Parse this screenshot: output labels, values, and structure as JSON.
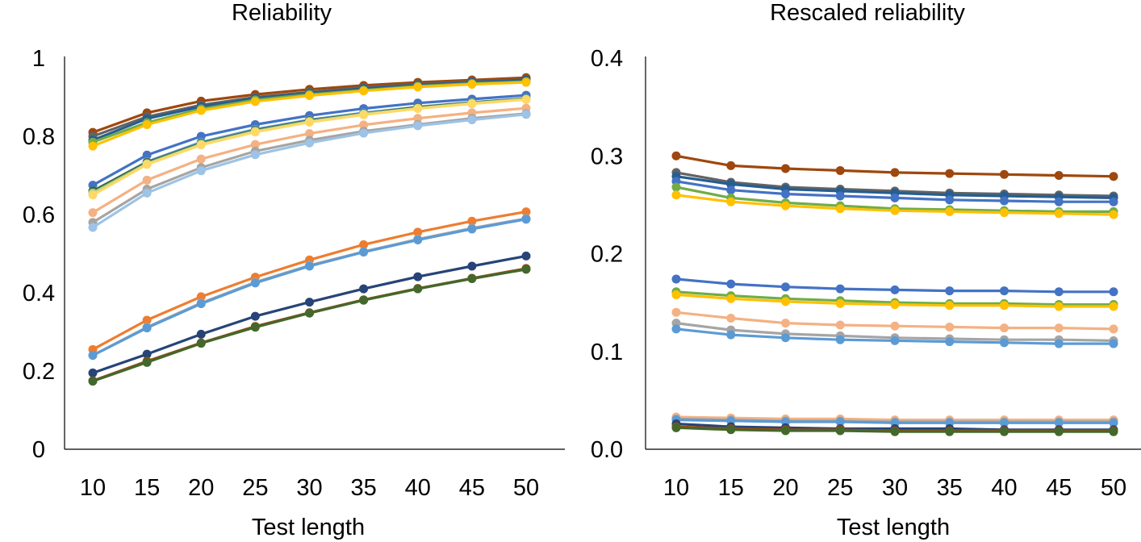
{
  "chart_data": [
    {
      "type": "line",
      "title": "Reliability",
      "xlabel": "Test length",
      "ylabel": "",
      "x": [
        10,
        15,
        20,
        25,
        30,
        35,
        40,
        45,
        50
      ],
      "ylim": [
        0,
        1
      ],
      "yticks": [
        "0",
        "0.2",
        "0.4",
        "0.6",
        "0.8",
        "1"
      ],
      "grid": false,
      "series": [
        {
          "color": "#9E480E",
          "values": [
            0.81,
            0.86,
            0.89,
            0.907,
            0.92,
            0.93,
            0.938,
            0.944,
            0.95
          ]
        },
        {
          "color": "#636363",
          "values": [
            0.8,
            0.85,
            0.88,
            0.9,
            0.913,
            0.925,
            0.933,
            0.94,
            0.945
          ]
        },
        {
          "color": "#255E91",
          "values": [
            0.79,
            0.845,
            0.876,
            0.897,
            0.91,
            0.922,
            0.931,
            0.938,
            0.944
          ]
        },
        {
          "color": "#70AD47",
          "values": [
            0.785,
            0.835,
            0.87,
            0.893,
            0.907,
            0.918,
            0.928,
            0.935,
            0.94
          ]
        },
        {
          "color": "#FFC000",
          "values": [
            0.775,
            0.83,
            0.866,
            0.889,
            0.904,
            0.916,
            0.926,
            0.933,
            0.938
          ]
        },
        {
          "color": "#4472C4",
          "values": [
            0.675,
            0.752,
            0.8,
            0.83,
            0.853,
            0.871,
            0.885,
            0.895,
            0.905
          ]
        },
        {
          "color": "#5B9BD5",
          "values": [
            0.66,
            0.735,
            0.785,
            0.818,
            0.842,
            0.86,
            0.875,
            0.887,
            0.897
          ]
        },
        {
          "color": "#43682B",
          "values": [
            0.66,
            0.733,
            0.782,
            0.815,
            0.84,
            0.858,
            0.874,
            0.886,
            0.896
          ]
        },
        {
          "color": "#A9D18E",
          "values": [
            0.655,
            0.73,
            0.78,
            0.813,
            0.838,
            0.857,
            0.872,
            0.885,
            0.895
          ]
        },
        {
          "color": "#FFD966",
          "values": [
            0.65,
            0.728,
            0.778,
            0.811,
            0.836,
            0.855,
            0.871,
            0.883,
            0.894
          ]
        },
        {
          "color": "#F4B183",
          "values": [
            0.605,
            0.688,
            0.742,
            0.779,
            0.807,
            0.829,
            0.846,
            0.86,
            0.872
          ]
        },
        {
          "color": "#A5A5A5",
          "values": [
            0.58,
            0.665,
            0.72,
            0.762,
            0.79,
            0.813,
            0.83,
            0.846,
            0.858
          ]
        },
        {
          "color": "#9DC3E6",
          "values": [
            0.567,
            0.655,
            0.712,
            0.753,
            0.783,
            0.808,
            0.827,
            0.842,
            0.856
          ]
        },
        {
          "color": "#ED7D31",
          "values": [
            0.255,
            0.33,
            0.39,
            0.44,
            0.484,
            0.523,
            0.555,
            0.583,
            0.607
          ]
        },
        {
          "color": "#A5A5A5",
          "values": [
            0.24,
            0.312,
            0.374,
            0.427,
            0.47,
            0.505,
            0.537,
            0.565,
            0.59
          ]
        },
        {
          "color": "#5B9BD5",
          "values": [
            0.24,
            0.31,
            0.372,
            0.425,
            0.468,
            0.504,
            0.535,
            0.563,
            0.588
          ]
        },
        {
          "color": "#264478",
          "values": [
            0.195,
            0.243,
            0.294,
            0.34,
            0.376,
            0.41,
            0.441,
            0.468,
            0.494
          ]
        },
        {
          "color": "#9E480E",
          "values": [
            0.175,
            0.225,
            0.272,
            0.314,
            0.349,
            0.382,
            0.411,
            0.437,
            0.462
          ]
        },
        {
          "color": "#43682B",
          "values": [
            0.174,
            0.222,
            0.271,
            0.312,
            0.348,
            0.381,
            0.41,
            0.436,
            0.46
          ]
        }
      ]
    },
    {
      "type": "line",
      "title": "Rescaled reliability",
      "xlabel": "Test length",
      "ylabel": "",
      "x": [
        10,
        15,
        20,
        25,
        30,
        35,
        40,
        45,
        50
      ],
      "ylim": [
        0,
        0.4
      ],
      "yticks": [
        "0.0",
        "0.1",
        "0.2",
        "0.3",
        "0.4"
      ],
      "grid": false,
      "series": [
        {
          "color": "#9E480E",
          "values": [
            0.3,
            0.29,
            0.287,
            0.285,
            0.283,
            0.282,
            0.281,
            0.28,
            0.279
          ]
        },
        {
          "color": "#636363",
          "values": [
            0.283,
            0.273,
            0.268,
            0.266,
            0.264,
            0.262,
            0.261,
            0.26,
            0.259
          ]
        },
        {
          "color": "#255E91",
          "values": [
            0.279,
            0.271,
            0.266,
            0.264,
            0.262,
            0.26,
            0.259,
            0.258,
            0.257
          ]
        },
        {
          "color": "#4472C4",
          "values": [
            0.274,
            0.265,
            0.261,
            0.259,
            0.257,
            0.255,
            0.254,
            0.253,
            0.253
          ]
        },
        {
          "color": "#70AD47",
          "values": [
            0.268,
            0.257,
            0.252,
            0.249,
            0.246,
            0.245,
            0.244,
            0.243,
            0.243
          ]
        },
        {
          "color": "#FFC000",
          "values": [
            0.26,
            0.253,
            0.249,
            0.246,
            0.244,
            0.243,
            0.242,
            0.241,
            0.24
          ]
        },
        {
          "color": "#4472C4",
          "values": [
            0.174,
            0.169,
            0.166,
            0.164,
            0.163,
            0.162,
            0.162,
            0.161,
            0.161
          ]
        },
        {
          "color": "#70AD47",
          "values": [
            0.161,
            0.157,
            0.154,
            0.152,
            0.15,
            0.149,
            0.149,
            0.148,
            0.148
          ]
        },
        {
          "color": "#FFC000",
          "values": [
            0.158,
            0.154,
            0.151,
            0.149,
            0.148,
            0.147,
            0.147,
            0.146,
            0.146
          ]
        },
        {
          "color": "#F4B183",
          "values": [
            0.14,
            0.134,
            0.129,
            0.127,
            0.126,
            0.125,
            0.124,
            0.124,
            0.123
          ]
        },
        {
          "color": "#A5A5A5",
          "values": [
            0.129,
            0.122,
            0.118,
            0.116,
            0.114,
            0.113,
            0.112,
            0.112,
            0.111
          ]
        },
        {
          "color": "#5B9BD5",
          "values": [
            0.123,
            0.117,
            0.114,
            0.112,
            0.111,
            0.11,
            0.109,
            0.108,
            0.108
          ]
        },
        {
          "color": "#F4B183",
          "values": [
            0.033,
            0.032,
            0.031,
            0.031,
            0.03,
            0.03,
            0.03,
            0.03,
            0.03
          ]
        },
        {
          "color": "#A5A5A5",
          "values": [
            0.031,
            0.03,
            0.029,
            0.029,
            0.028,
            0.028,
            0.028,
            0.028,
            0.028
          ]
        },
        {
          "color": "#5B9BD5",
          "values": [
            0.03,
            0.029,
            0.028,
            0.028,
            0.027,
            0.027,
            0.027,
            0.027,
            0.027
          ]
        },
        {
          "color": "#264478",
          "values": [
            0.026,
            0.023,
            0.022,
            0.021,
            0.021,
            0.021,
            0.02,
            0.02,
            0.02
          ]
        },
        {
          "color": "#9E480E",
          "values": [
            0.023,
            0.021,
            0.02,
            0.02,
            0.019,
            0.019,
            0.019,
            0.019,
            0.019
          ]
        },
        {
          "color": "#43682B",
          "values": [
            0.022,
            0.02,
            0.019,
            0.019,
            0.018,
            0.018,
            0.018,
            0.018,
            0.018
          ]
        }
      ]
    }
  ]
}
